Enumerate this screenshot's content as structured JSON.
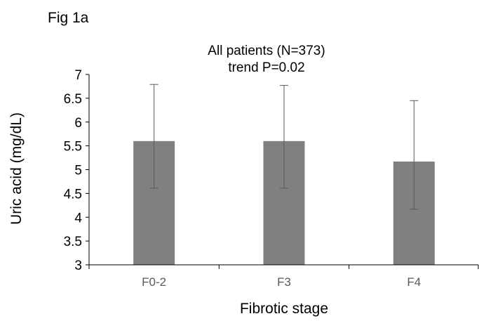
{
  "figure_label": "Fig 1a",
  "chart_data": {
    "type": "bar",
    "title_lines": [
      "All patients (N=373)",
      "trend P=0.02"
    ],
    "xlabel": "Fibrotic stage",
    "ylabel": "Uric acid (mg/dL)",
    "categories": [
      "F0-2",
      "F3",
      "F4"
    ],
    "values": [
      5.6,
      5.6,
      5.17
    ],
    "error_upper": [
      6.79,
      6.77,
      6.45
    ],
    "error_lower": [
      4.61,
      4.61,
      4.17
    ],
    "ylim": [
      3,
      7
    ],
    "yticks": [
      "3",
      "3.5",
      "4",
      "4.5",
      "5",
      "5.5",
      "6",
      "6.5",
      "7"
    ],
    "grid": false,
    "legend": "none",
    "colors": {
      "bar": "#808080",
      "error_bar": "#595959",
      "axis": "#000000"
    }
  }
}
